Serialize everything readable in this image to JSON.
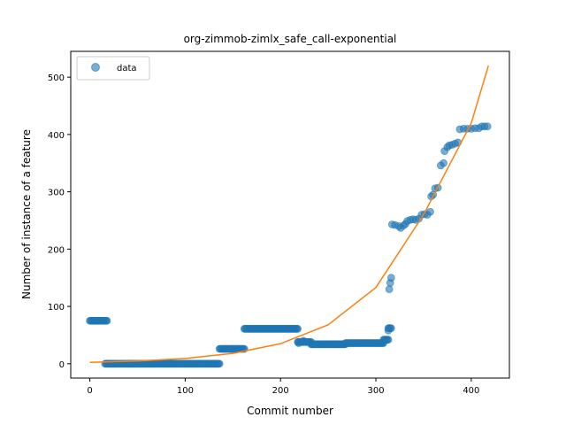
{
  "chart_data": {
    "type": "scatter",
    "title": "org-zimmob-zimlx_safe_call-exponential",
    "xlabel": "Commit number",
    "ylabel": "Number of instance of a feature",
    "xlim": [
      -20,
      440
    ],
    "ylim": [
      -25,
      545
    ],
    "xticks": [
      0,
      100,
      200,
      300,
      400
    ],
    "yticks": [
      0,
      100,
      200,
      300,
      400,
      500
    ],
    "legend": {
      "placement": "upper-left",
      "entries": [
        "data"
      ]
    },
    "grid": false,
    "colors": {
      "data": "#1f77b4",
      "fit": "#ff7f0e"
    },
    "series": [
      {
        "name": "data",
        "style": "points",
        "segments": [
          {
            "x_from": 0,
            "x_to": 18,
            "y": 75
          },
          {
            "x_from": 16,
            "x_to": 136,
            "y": 0
          },
          {
            "x_from": 136,
            "x_to": 162,
            "y": 26
          },
          {
            "x_from": 162,
            "x_to": 218,
            "y": 61
          },
          {
            "x_from": 218,
            "x_to": 232,
            "y": 38
          },
          {
            "x_from": 232,
            "x_to": 268,
            "y": 34
          },
          {
            "x_from": 268,
            "x_to": 308,
            "y": 36
          },
          {
            "x_from": 308,
            "x_to": 313,
            "y": 42
          },
          {
            "x_from": 313,
            "x_to": 316,
            "y": 62
          }
        ],
        "points": [
          [
            219,
            36
          ],
          [
            224,
            40
          ],
          [
            229,
            38
          ],
          [
            313,
            58
          ],
          [
            314,
            130
          ],
          [
            315,
            141
          ],
          [
            316,
            150
          ],
          [
            317,
            243
          ],
          [
            320,
            242
          ],
          [
            324,
            240
          ],
          [
            326,
            237
          ],
          [
            329,
            241
          ],
          [
            331,
            244
          ],
          [
            333,
            249
          ],
          [
            336,
            251
          ],
          [
            339,
            252
          ],
          [
            342,
            251
          ],
          [
            345,
            253
          ],
          [
            348,
            260
          ],
          [
            351,
            261
          ],
          [
            354,
            260
          ],
          [
            357,
            265
          ],
          [
            358,
            292
          ],
          [
            360,
            295
          ],
          [
            362,
            306
          ],
          [
            365,
            307
          ],
          [
            368,
            346
          ],
          [
            371,
            350
          ],
          [
            372,
            371
          ],
          [
            375,
            378
          ],
          [
            377,
            381
          ],
          [
            380,
            382
          ],
          [
            383,
            384
          ],
          [
            386,
            386
          ],
          [
            388,
            409
          ],
          [
            392,
            410
          ],
          [
            396,
            410
          ],
          [
            400,
            410
          ],
          [
            404,
            411
          ],
          [
            408,
            411
          ],
          [
            411,
            414
          ],
          [
            414,
            414
          ],
          [
            417,
            414
          ]
        ]
      },
      {
        "name": "",
        "style": "line",
        "model": "exponential",
        "x": [
          0,
          50,
          100,
          150,
          200,
          250,
          300,
          350,
          400,
          418
        ],
        "y": [
          2.5,
          4.7,
          9.2,
          18,
          35,
          68,
          133,
          260,
          420,
          520
        ]
      }
    ]
  }
}
